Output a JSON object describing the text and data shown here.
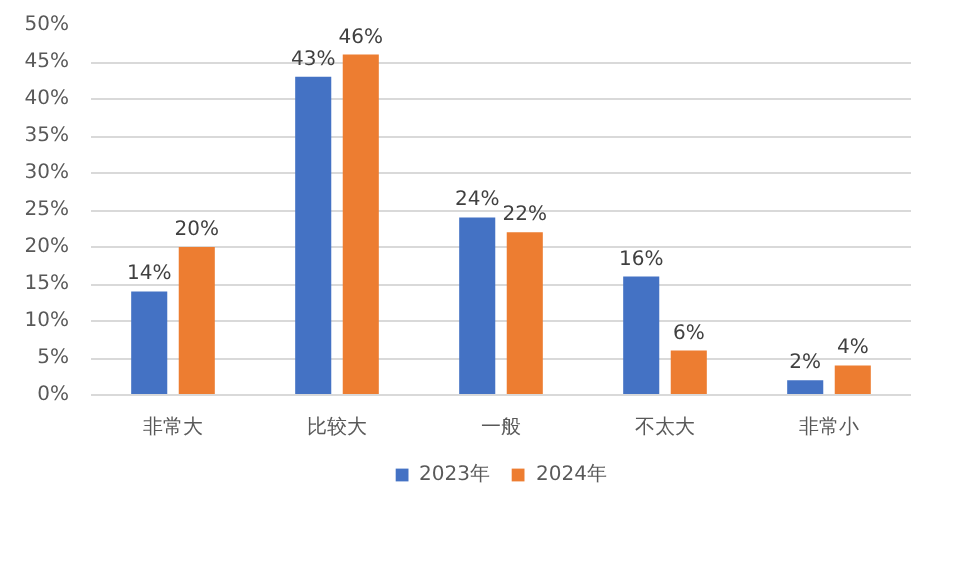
{
  "chart_data": {
    "type": "bar",
    "categories": [
      "非常大",
      "比较大",
      "一般",
      "不太大",
      "非常小"
    ],
    "series": [
      {
        "name": "2023年",
        "color": "#4472c4",
        "values": [
          14,
          43,
          24,
          16,
          2
        ],
        "value_labels": [
          "14%",
          "43%",
          "24%",
          "16%",
          "2%"
        ]
      },
      {
        "name": "2024年",
        "color": "#ed7d31",
        "values": [
          20,
          46,
          22,
          6,
          4
        ],
        "value_labels": [
          "20%",
          "46%",
          "22%",
          "6%",
          "4%"
        ]
      }
    ],
    "ylim": [
      0,
      50
    ],
    "yticks": [
      {
        "value": 0,
        "label": "0%"
      },
      {
        "value": 5,
        "label": "5%"
      },
      {
        "value": 10,
        "label": "10%"
      },
      {
        "value": 15,
        "label": "15%"
      },
      {
        "value": 20,
        "label": "20%"
      },
      {
        "value": 25,
        "label": "25%"
      },
      {
        "value": 30,
        "label": "30%"
      },
      {
        "value": 35,
        "label": "35%"
      },
      {
        "value": 40,
        "label": "40%"
      },
      {
        "value": 45,
        "label": "45%"
      },
      {
        "value": 50,
        "label": "50%"
      }
    ],
    "grid": "y",
    "legend": "bottom"
  }
}
